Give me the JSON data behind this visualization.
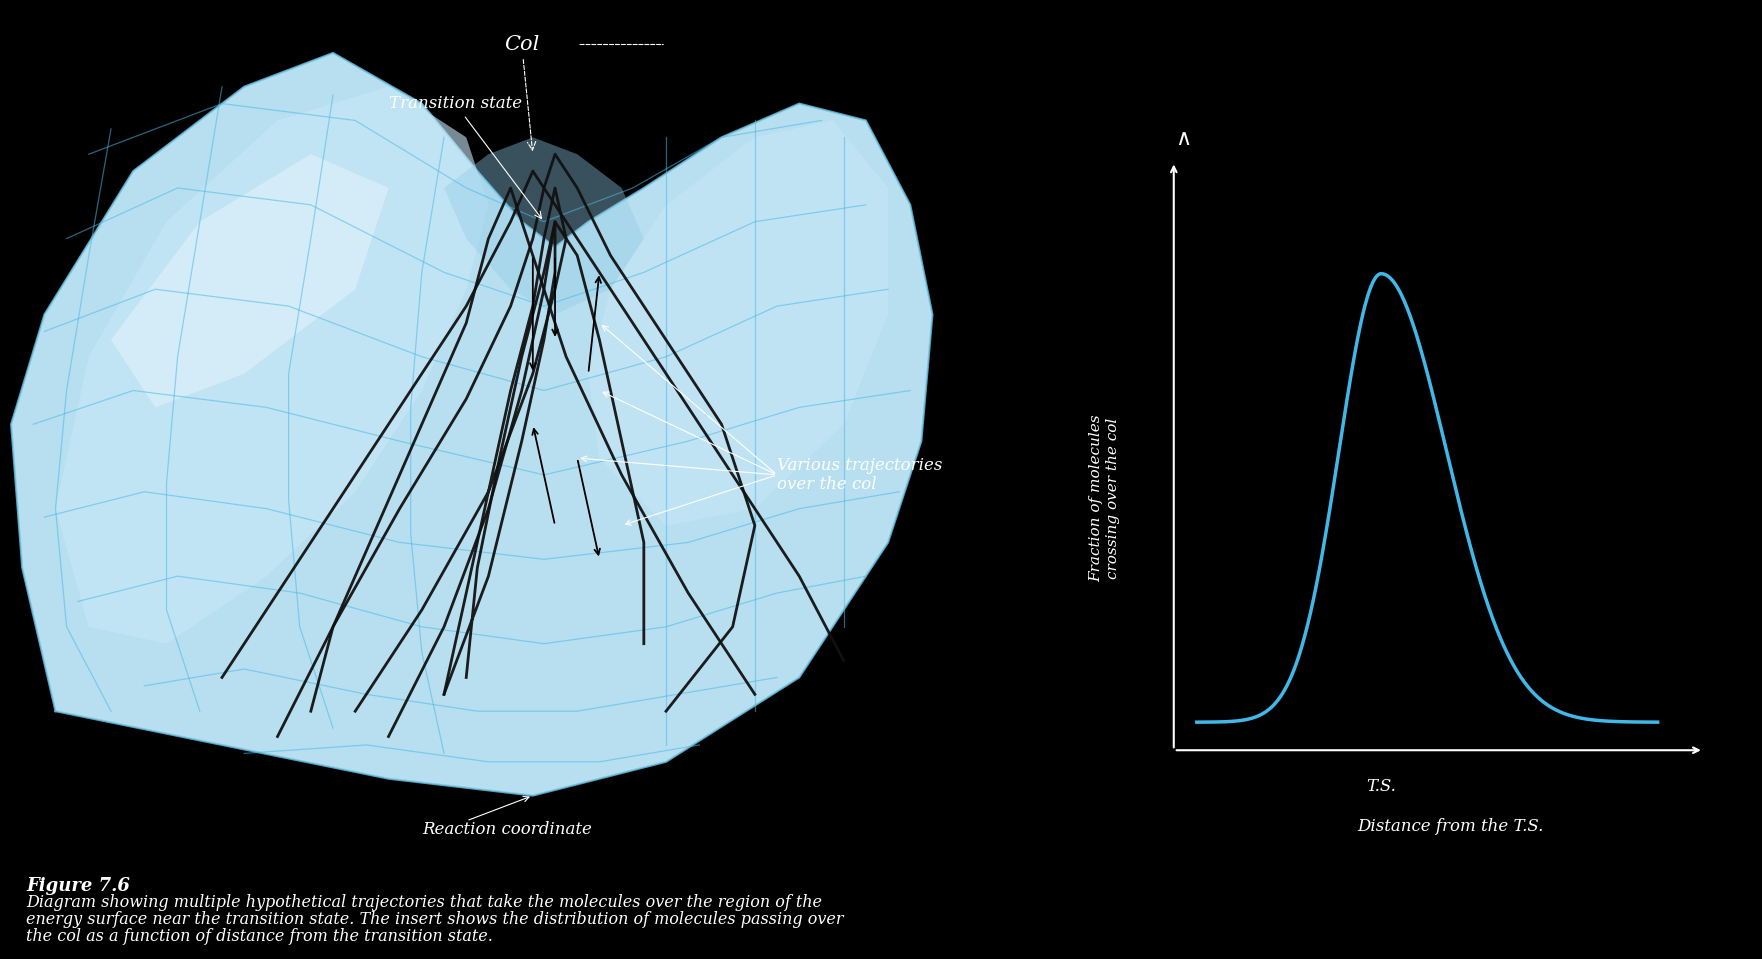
{
  "background_color": "#000000",
  "surface_outer": "#a8d8f0",
  "surface_inner_light": "#d8eef8",
  "surface_col_dark": "#1a9de0",
  "grid_color": "#4ab8e8",
  "traj_color": "#111111",
  "curve_color": "#40b8e8",
  "text_color": "#ffffff",
  "label_col": "Col",
  "label_ts": "Transition state",
  "label_traj": "Various trajectories\nover the col",
  "label_rxn_coord": "Reaction coordinate",
  "ylabel_right": "Fraction of molecules\ncrossing over the col",
  "xlabel_right": "Distance from the T.S.",
  "ts_label": "T.S.",
  "figure_label": "Figure 7.6",
  "caption_line1": "Diagram showing multiple hypothetical trajectories that take the molecules over the region of the",
  "caption_line2": "energy surface near the transition state. The insert shows the distribution of molecules passing over",
  "caption_line3": "the col as a function of distance from the transition state."
}
